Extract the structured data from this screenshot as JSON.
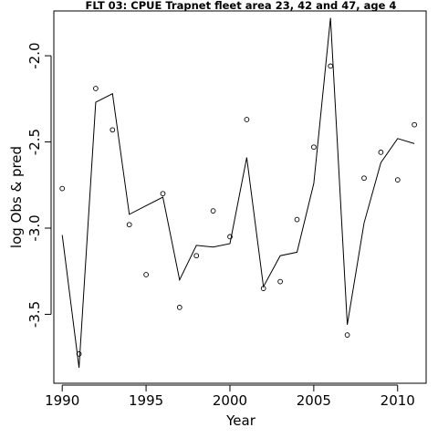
{
  "chart_data": {
    "type": "scatter",
    "title": "FLT 03: CPUE Trapnet fleet area 23, 42 and 47, age 4",
    "xlabel": "Year",
    "ylabel": "log Obs & pred",
    "xlim": [
      1989.5,
      2011.7
    ],
    "ylim": [
      -3.9,
      -1.74
    ],
    "x_ticks": [
      1990,
      1995,
      2000,
      2005,
      2010
    ],
    "y_ticks": [
      -3.5,
      -3.0,
      -2.5,
      -2.0
    ],
    "y_tick_labels": [
      "-3.5",
      "-3.0",
      "-2.5",
      "-2.0"
    ],
    "grid": false,
    "series": [
      {
        "style": "points",
        "x": [
          1990,
          1991,
          1992,
          1993,
          1994,
          1995,
          1996,
          1997,
          1998,
          1999,
          2000,
          2001,
          2002,
          2003,
          2004,
          2005,
          2006,
          2007,
          2008,
          2009,
          2010,
          2011
        ],
        "values": [
          -2.77,
          -3.73,
          -2.19,
          -2.43,
          -2.98,
          -3.27,
          -2.8,
          -3.46,
          -3.16,
          -2.9,
          -3.05,
          -2.37,
          -3.35,
          -3.31,
          -2.95,
          -2.53,
          -2.06,
          -3.62,
          -2.71,
          -2.56,
          -2.72,
          -2.4
        ]
      },
      {
        "style": "line",
        "x": [
          1990,
          1991,
          1992,
          1993,
          1994,
          1995,
          1996,
          1997,
          1998,
          1999,
          2000,
          2001,
          2002,
          2003,
          2004,
          2005,
          2006,
          2007,
          2008,
          2009,
          2010,
          2011
        ],
        "values": [
          -3.04,
          -3.81,
          -2.27,
          -2.22,
          -2.92,
          -2.87,
          -2.82,
          -3.3,
          -3.1,
          -3.11,
          -3.09,
          -2.59,
          -3.34,
          -3.16,
          -3.14,
          -2.74,
          -1.78,
          -3.56,
          -2.97,
          -2.62,
          -2.48,
          -2.51
        ]
      }
    ]
  }
}
